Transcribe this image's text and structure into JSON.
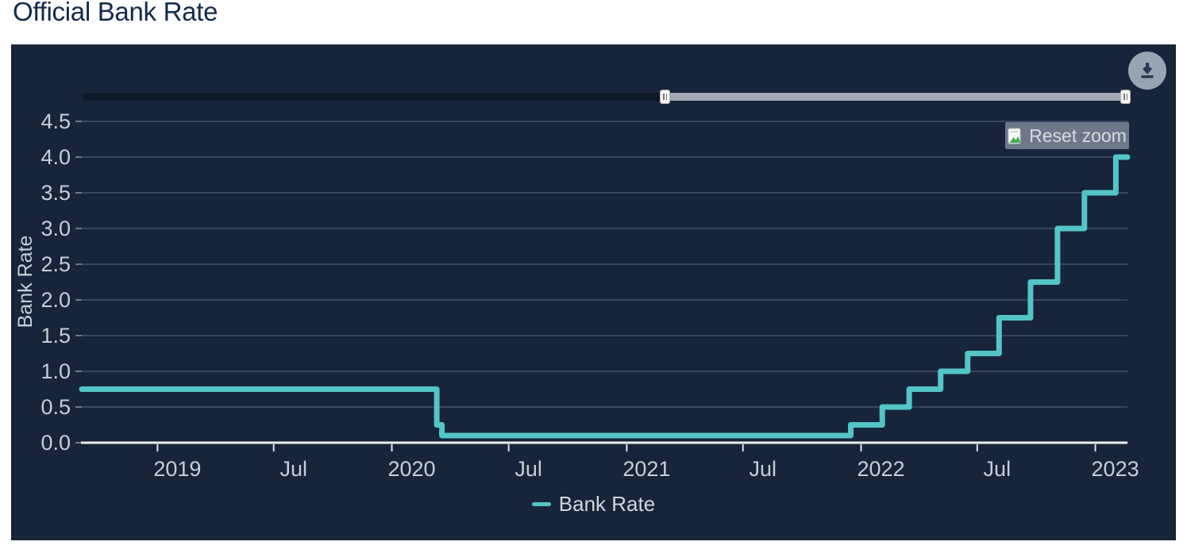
{
  "page": {
    "title": "Official Bank Rate"
  },
  "chart": {
    "reset_zoom_label": "Reset zoom",
    "legend_label": "Bank Rate",
    "colors": {
      "panel_background": "#17243a",
      "series_line": "#53c5c6",
      "gridline": "#44516a",
      "axis_line": "#eceef1",
      "axis_label": "#c8ced8",
      "tick_mark": "#8a93a3",
      "x_tick_mark": "#e3e6ea",
      "navigator_unselected": "#0e1829",
      "navigator_selected": "#a1a8b2",
      "download_circle": "#99a3b1",
      "download_glyph": "#2a3850",
      "reset_button_bg": "#76808f",
      "title_text": "#13294b"
    },
    "icons": {
      "download": "download-arrow-icon",
      "reset_zoom": "page-chart-icon",
      "navigator_handles": "grip-handle-icon"
    }
  },
  "chart_data": {
    "type": "line",
    "step": true,
    "title": "Official Bank Rate",
    "xlabel": "",
    "ylabel": "Bank Rate",
    "ylim": [
      0,
      4.75
    ],
    "yticks": [
      0.0,
      0.5,
      1.0,
      1.5,
      2.0,
      2.5,
      3.0,
      3.5,
      4.0,
      4.5
    ],
    "x_range": [
      "2018-09-05",
      "2023-02-20"
    ],
    "xticks": [
      {
        "date": "2019-01-01",
        "label": "2019"
      },
      {
        "date": "2019-07-01",
        "label": "Jul"
      },
      {
        "date": "2020-01-01",
        "label": "2020"
      },
      {
        "date": "2020-07-01",
        "label": "Jul"
      },
      {
        "date": "2021-01-01",
        "label": "2021"
      },
      {
        "date": "2021-07-01",
        "label": "Jul"
      },
      {
        "date": "2022-01-01",
        "label": "2022"
      },
      {
        "date": "2022-07-01",
        "label": "Jul"
      },
      {
        "date": "2023-01-01",
        "label": "2023"
      }
    ],
    "grid": true,
    "legend_position": "bottom",
    "series": [
      {
        "name": "Bank Rate",
        "color": "#53c5c6",
        "points": [
          [
            "2018-09-05",
            0.75
          ],
          [
            "2020-03-11",
            0.25
          ],
          [
            "2020-03-19",
            0.1
          ],
          [
            "2021-12-16",
            0.25
          ],
          [
            "2022-02-03",
            0.5
          ],
          [
            "2022-03-17",
            0.75
          ],
          [
            "2022-05-05",
            1.0
          ],
          [
            "2022-06-16",
            1.25
          ],
          [
            "2022-08-04",
            1.75
          ],
          [
            "2022-09-22",
            2.25
          ],
          [
            "2022-11-03",
            3.0
          ],
          [
            "2022-12-15",
            3.5
          ],
          [
            "2023-02-02",
            4.0
          ]
        ]
      }
    ]
  }
}
